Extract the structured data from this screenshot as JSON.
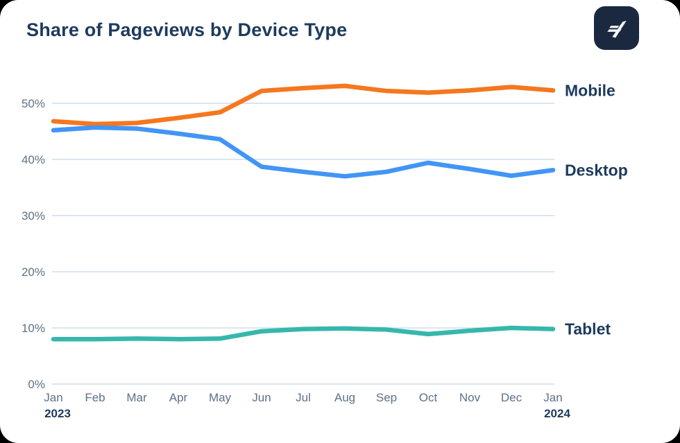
{
  "header": {
    "title": "Share of Pageviews by Device Type",
    "logo": {
      "icon": "arrow-stripes-icon",
      "bg_color": "#1b2940",
      "fg_color": "#f4f6f9"
    }
  },
  "colors": {
    "title_navy": "#1d3a5e",
    "tick_gray_blue": "#5d7186",
    "gridline": "#d9e5f0",
    "card_background": "#ffffff",
    "page_background": "#000000",
    "mobile_orange": "#f5771e",
    "desktop_blue": "#4295f5",
    "tablet_teal": "#36b7ac"
  },
  "chart_data": {
    "type": "line",
    "title": "Share of Pageviews by Device Type",
    "x": [
      "Jan",
      "Feb",
      "Mar",
      "Apr",
      "May",
      "Jun",
      "Jul",
      "Aug",
      "Sep",
      "Oct",
      "Nov",
      "Dec",
      "Jan"
    ],
    "x_years": [
      {
        "index": 0,
        "label": "2023"
      },
      {
        "index": 12,
        "label": "2024"
      }
    ],
    "series": [
      {
        "name": "Mobile",
        "color": "#f5771e",
        "values": [
          46.8,
          46.3,
          46.5,
          47.4,
          48.4,
          52.2,
          52.7,
          53.1,
          52.2,
          51.9,
          52.3,
          52.9,
          52.3
        ]
      },
      {
        "name": "Desktop",
        "color": "#4295f5",
        "values": [
          45.2,
          45.7,
          45.5,
          44.6,
          43.6,
          38.7,
          37.8,
          37.0,
          37.8,
          39.4,
          38.3,
          37.1,
          38.1
        ]
      },
      {
        "name": "Tablet",
        "color": "#36b7ac",
        "values": [
          8.0,
          8.0,
          8.1,
          8.0,
          8.1,
          9.4,
          9.8,
          9.9,
          9.7,
          8.9,
          9.5,
          10.0,
          9.8
        ]
      }
    ],
    "y_ticks": [
      "0%",
      "10%",
      "20%",
      "30%",
      "40%",
      "50%"
    ],
    "ylabel": "",
    "xlabel": "",
    "ylim": [
      0,
      55
    ],
    "grid": true,
    "legend_position": "right-of-line-ends"
  }
}
